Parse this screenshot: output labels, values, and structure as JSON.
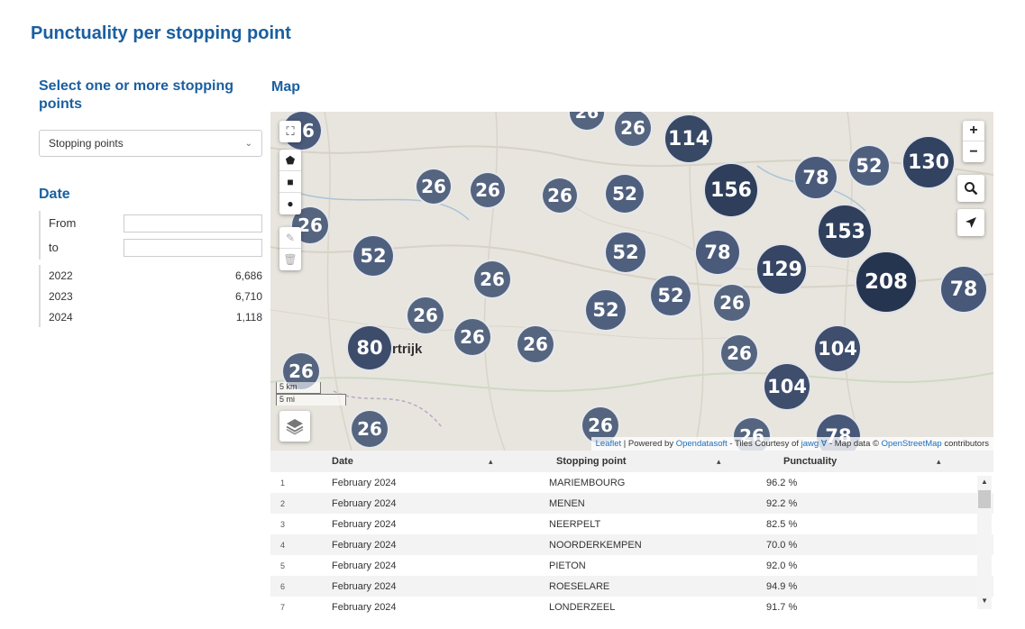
{
  "page": {
    "title": "Punctuality per stopping point"
  },
  "filters": {
    "stopping_title": "Select one or more stopping points",
    "stopping_placeholder": "Stopping points",
    "date_title": "Date",
    "from_label": "From",
    "to_label": "to",
    "years": [
      {
        "year": "2022",
        "count": "6,686"
      },
      {
        "year": "2023",
        "count": "6,710"
      },
      {
        "year": "2024",
        "count": "1,118"
      }
    ]
  },
  "map": {
    "title": "Map",
    "city_label": "rtrijk",
    "scale_km": "5 km",
    "scale_mi": "5 mi",
    "attribution": {
      "leaflet": "Leaflet",
      "powered": "| Powered by",
      "ods": "Opendatasoft",
      "tiles": "- Tiles Courtesy of",
      "jawg": "jawg",
      "mapdata": "- Map data ©",
      "osm": "OpenStreetMap",
      "contrib": "contributors"
    },
    "clusters": [
      "26",
      "26",
      "114",
      "156",
      "78",
      "52",
      "130",
      "26",
      "26",
      "26",
      "52",
      "52",
      "26",
      "52",
      "78",
      "153",
      "26",
      "129",
      "208",
      "78",
      "52",
      "52",
      "26",
      "26",
      "26",
      "26",
      "80",
      "26",
      "104",
      "26",
      "104",
      "26",
      "26",
      "26",
      "78"
    ]
  },
  "table": {
    "columns": [
      "Date",
      "Stopping point",
      "Punctuality"
    ],
    "rows": [
      {
        "n": "1",
        "date": "February 2024",
        "point": "MARIEMBOURG",
        "punct": "96.2 %"
      },
      {
        "n": "2",
        "date": "February 2024",
        "point": "MENEN",
        "punct": "92.2 %"
      },
      {
        "n": "3",
        "date": "February 2024",
        "point": "NEERPELT",
        "punct": "82.5 %"
      },
      {
        "n": "4",
        "date": "February 2024",
        "point": "NOORDERKEMPEN",
        "punct": "70.0 %"
      },
      {
        "n": "5",
        "date": "February 2024",
        "point": "PIETON",
        "punct": "92.0 %"
      },
      {
        "n": "6",
        "date": "February 2024",
        "point": "ROESELARE",
        "punct": "94.9 %"
      },
      {
        "n": "7",
        "date": "February 2024",
        "point": "LONDERZEEL",
        "punct": "91.7 %"
      }
    ]
  }
}
